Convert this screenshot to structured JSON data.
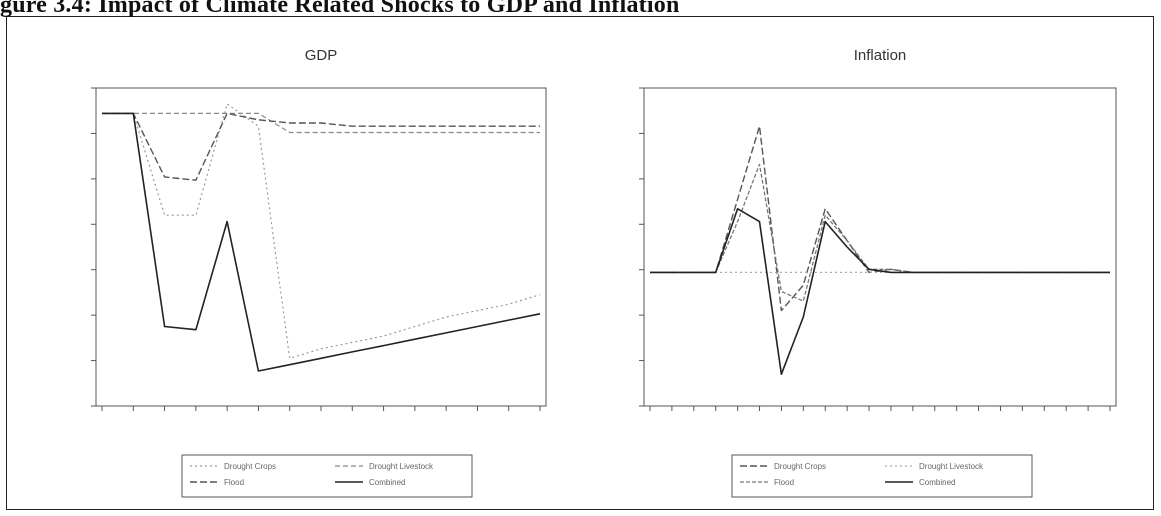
{
  "figure": {
    "title": "gure 3.4: Impact of Climate Related Shocks to GDP and Inflation"
  },
  "chart_data": [
    {
      "type": "line",
      "title": "GDP",
      "xlabel": "",
      "ylabel": "",
      "x": [
        1,
        2,
        3,
        4,
        5,
        6,
        7,
        8,
        9,
        10,
        11,
        12,
        13,
        14,
        15
      ],
      "ylim": [
        0,
        1
      ],
      "grid": false,
      "legend_placement": "bottom",
      "series": [
        {
          "name": "Drought Crops",
          "color": "#999999",
          "dash": "2,3",
          "width": 1.2,
          "values": [
            0.92,
            0.92,
            0.6,
            0.6,
            0.95,
            0.88,
            0.15,
            0.18,
            0.2,
            0.22,
            0.25,
            0.28,
            0.3,
            0.32,
            0.35
          ]
        },
        {
          "name": "Drought Livestock",
          "color": "#888888",
          "dash": "5,3",
          "width": 1.2,
          "values": [
            0.92,
            0.92,
            0.92,
            0.92,
            0.92,
            0.92,
            0.86,
            0.86,
            0.86,
            0.86,
            0.86,
            0.86,
            0.86,
            0.86,
            0.86
          ]
        },
        {
          "name": "Flood",
          "color": "#555555",
          "dash": "7,3",
          "width": 1.4,
          "values": [
            0.92,
            0.92,
            0.72,
            0.71,
            0.92,
            0.9,
            0.89,
            0.89,
            0.88,
            0.88,
            0.88,
            0.88,
            0.88,
            0.88,
            0.88
          ]
        },
        {
          "name": "Combined",
          "color": "#222222",
          "dash": "",
          "width": 1.6,
          "values": [
            0.92,
            0.92,
            0.25,
            0.24,
            0.58,
            0.11,
            0.13,
            0.15,
            0.17,
            0.19,
            0.21,
            0.23,
            0.25,
            0.27,
            0.29
          ]
        }
      ]
    },
    {
      "type": "line",
      "title": "Inflation",
      "xlabel": "",
      "ylabel": "",
      "x": [
        1,
        2,
        3,
        4,
        5,
        6,
        7,
        8,
        9,
        10,
        11,
        12,
        13,
        14,
        15,
        16,
        17,
        18,
        19,
        20,
        21,
        22
      ],
      "ylim": [
        0,
        1
      ],
      "grid": false,
      "legend_placement": "bottom",
      "series": [
        {
          "name": "Drought Crops",
          "color": "#555555",
          "dash": "7,3",
          "width": 1.4,
          "values": [
            0.42,
            0.42,
            0.42,
            0.42,
            0.65,
            0.88,
            0.3,
            0.38,
            0.62,
            0.52,
            0.42,
            0.43,
            0.42,
            0.42,
            0.42,
            0.42,
            0.42,
            0.42,
            0.42,
            0.42,
            0.42,
            0.42
          ]
        },
        {
          "name": "Drought Livestock",
          "color": "#aaaaaa",
          "dash": "2,3",
          "width": 1.2,
          "values": [
            0.42,
            0.42,
            0.42,
            0.42,
            0.42,
            0.42,
            0.42,
            0.42,
            0.42,
            0.42,
            0.42,
            0.42,
            0.42,
            0.42,
            0.42,
            0.42,
            0.42,
            0.42,
            0.42,
            0.42,
            0.42,
            0.42
          ]
        },
        {
          "name": "Flood",
          "color": "#777777",
          "dash": "4,2",
          "width": 1.3,
          "values": [
            0.42,
            0.42,
            0.42,
            0.42,
            0.58,
            0.76,
            0.36,
            0.33,
            0.6,
            0.52,
            0.43,
            0.43,
            0.42,
            0.42,
            0.42,
            0.42,
            0.42,
            0.42,
            0.42,
            0.42,
            0.42,
            0.42
          ]
        },
        {
          "name": "Combined",
          "color": "#222222",
          "dash": "",
          "width": 1.6,
          "values": [
            0.42,
            0.42,
            0.42,
            0.42,
            0.62,
            0.58,
            0.1,
            0.28,
            0.58,
            0.5,
            0.43,
            0.42,
            0.42,
            0.42,
            0.42,
            0.42,
            0.42,
            0.42,
            0.42,
            0.42,
            0.42,
            0.42
          ]
        }
      ]
    }
  ]
}
